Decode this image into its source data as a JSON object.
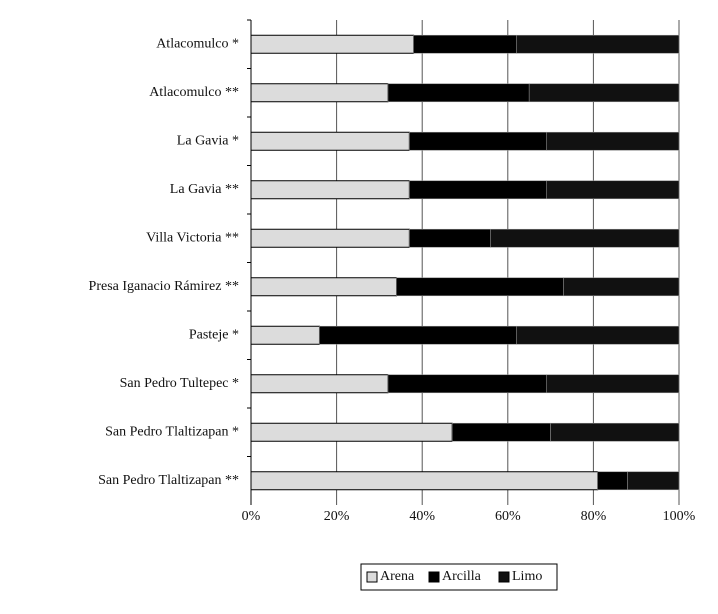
{
  "chart_data": {
    "type": "bar",
    "orientation": "horizontal",
    "stacked": true,
    "categories": [
      "Atlacomulco *",
      "Atlacomulco **",
      "La Gavia *",
      "La Gavia **",
      "Villa Victoria **",
      "Presa Iganacio Rámirez **",
      "Pasteje *",
      "San Pedro Tultepec *",
      "San Pedro Tlaltizapan *",
      "San Pedro Tlaltizapan **"
    ],
    "series": [
      {
        "name": "Arena",
        "color": "#dcdcdc",
        "values": [
          38,
          32,
          37,
          37,
          37,
          34,
          16,
          32,
          47,
          81
        ]
      },
      {
        "name": "Arcilla",
        "color": "#000000",
        "values": [
          24,
          33,
          32,
          32,
          19,
          39,
          46,
          37,
          23,
          7
        ]
      },
      {
        "name": "Limo",
        "color": "#111111",
        "values": [
          38,
          35,
          31,
          31,
          44,
          27,
          38,
          31,
          30,
          12
        ]
      }
    ],
    "xlim": [
      0,
      100
    ],
    "xticks": [
      {
        "value": 0,
        "label": "0%"
      },
      {
        "value": 20,
        "label": "20%"
      },
      {
        "value": 40,
        "label": "40%"
      },
      {
        "value": 60,
        "label": "60%"
      },
      {
        "value": 80,
        "label": "80%"
      },
      {
        "value": 100,
        "label": "100%"
      }
    ],
    "grid": true,
    "legend": "bottom"
  }
}
